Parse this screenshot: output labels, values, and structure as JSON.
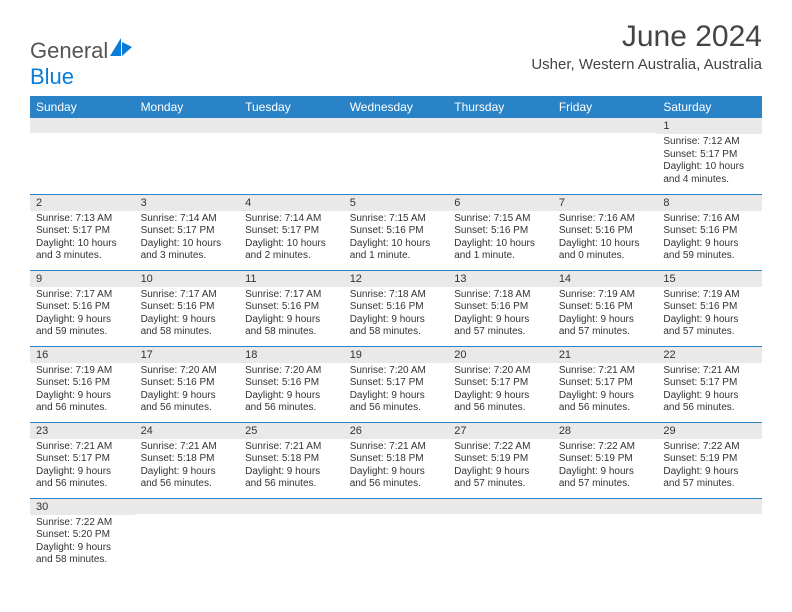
{
  "brand": {
    "word1": "General",
    "word2": "Blue"
  },
  "title": "June 2024",
  "subtitle": "Usher, Western Australia, Australia",
  "colors": {
    "header_bg": "#2a83c7",
    "header_fg": "#ffffff",
    "daynum_bg": "#e9e9e9",
    "row_border": "#2a83c7",
    "brand_blue": "#0a7dd8"
  },
  "weekdays": [
    "Sunday",
    "Monday",
    "Tuesday",
    "Wednesday",
    "Thursday",
    "Friday",
    "Saturday"
  ],
  "weeks": [
    [
      {
        "empty": true
      },
      {
        "empty": true
      },
      {
        "empty": true
      },
      {
        "empty": true
      },
      {
        "empty": true
      },
      {
        "empty": true
      },
      {
        "n": "1",
        "sunrise": "Sunrise: 7:12 AM",
        "sunset": "Sunset: 5:17 PM",
        "daylight": "Daylight: 10 hours and 4 minutes."
      }
    ],
    [
      {
        "n": "2",
        "sunrise": "Sunrise: 7:13 AM",
        "sunset": "Sunset: 5:17 PM",
        "daylight": "Daylight: 10 hours and 3 minutes."
      },
      {
        "n": "3",
        "sunrise": "Sunrise: 7:14 AM",
        "sunset": "Sunset: 5:17 PM",
        "daylight": "Daylight: 10 hours and 3 minutes."
      },
      {
        "n": "4",
        "sunrise": "Sunrise: 7:14 AM",
        "sunset": "Sunset: 5:17 PM",
        "daylight": "Daylight: 10 hours and 2 minutes."
      },
      {
        "n": "5",
        "sunrise": "Sunrise: 7:15 AM",
        "sunset": "Sunset: 5:16 PM",
        "daylight": "Daylight: 10 hours and 1 minute."
      },
      {
        "n": "6",
        "sunrise": "Sunrise: 7:15 AM",
        "sunset": "Sunset: 5:16 PM",
        "daylight": "Daylight: 10 hours and 1 minute."
      },
      {
        "n": "7",
        "sunrise": "Sunrise: 7:16 AM",
        "sunset": "Sunset: 5:16 PM",
        "daylight": "Daylight: 10 hours and 0 minutes."
      },
      {
        "n": "8",
        "sunrise": "Sunrise: 7:16 AM",
        "sunset": "Sunset: 5:16 PM",
        "daylight": "Daylight: 9 hours and 59 minutes."
      }
    ],
    [
      {
        "n": "9",
        "sunrise": "Sunrise: 7:17 AM",
        "sunset": "Sunset: 5:16 PM",
        "daylight": "Daylight: 9 hours and 59 minutes."
      },
      {
        "n": "10",
        "sunrise": "Sunrise: 7:17 AM",
        "sunset": "Sunset: 5:16 PM",
        "daylight": "Daylight: 9 hours and 58 minutes."
      },
      {
        "n": "11",
        "sunrise": "Sunrise: 7:17 AM",
        "sunset": "Sunset: 5:16 PM",
        "daylight": "Daylight: 9 hours and 58 minutes."
      },
      {
        "n": "12",
        "sunrise": "Sunrise: 7:18 AM",
        "sunset": "Sunset: 5:16 PM",
        "daylight": "Daylight: 9 hours and 58 minutes."
      },
      {
        "n": "13",
        "sunrise": "Sunrise: 7:18 AM",
        "sunset": "Sunset: 5:16 PM",
        "daylight": "Daylight: 9 hours and 57 minutes."
      },
      {
        "n": "14",
        "sunrise": "Sunrise: 7:19 AM",
        "sunset": "Sunset: 5:16 PM",
        "daylight": "Daylight: 9 hours and 57 minutes."
      },
      {
        "n": "15",
        "sunrise": "Sunrise: 7:19 AM",
        "sunset": "Sunset: 5:16 PM",
        "daylight": "Daylight: 9 hours and 57 minutes."
      }
    ],
    [
      {
        "n": "16",
        "sunrise": "Sunrise: 7:19 AM",
        "sunset": "Sunset: 5:16 PM",
        "daylight": "Daylight: 9 hours and 56 minutes."
      },
      {
        "n": "17",
        "sunrise": "Sunrise: 7:20 AM",
        "sunset": "Sunset: 5:16 PM",
        "daylight": "Daylight: 9 hours and 56 minutes."
      },
      {
        "n": "18",
        "sunrise": "Sunrise: 7:20 AM",
        "sunset": "Sunset: 5:16 PM",
        "daylight": "Daylight: 9 hours and 56 minutes."
      },
      {
        "n": "19",
        "sunrise": "Sunrise: 7:20 AM",
        "sunset": "Sunset: 5:17 PM",
        "daylight": "Daylight: 9 hours and 56 minutes."
      },
      {
        "n": "20",
        "sunrise": "Sunrise: 7:20 AM",
        "sunset": "Sunset: 5:17 PM",
        "daylight": "Daylight: 9 hours and 56 minutes."
      },
      {
        "n": "21",
        "sunrise": "Sunrise: 7:21 AM",
        "sunset": "Sunset: 5:17 PM",
        "daylight": "Daylight: 9 hours and 56 minutes."
      },
      {
        "n": "22",
        "sunrise": "Sunrise: 7:21 AM",
        "sunset": "Sunset: 5:17 PM",
        "daylight": "Daylight: 9 hours and 56 minutes."
      }
    ],
    [
      {
        "n": "23",
        "sunrise": "Sunrise: 7:21 AM",
        "sunset": "Sunset: 5:17 PM",
        "daylight": "Daylight: 9 hours and 56 minutes."
      },
      {
        "n": "24",
        "sunrise": "Sunrise: 7:21 AM",
        "sunset": "Sunset: 5:18 PM",
        "daylight": "Daylight: 9 hours and 56 minutes."
      },
      {
        "n": "25",
        "sunrise": "Sunrise: 7:21 AM",
        "sunset": "Sunset: 5:18 PM",
        "daylight": "Daylight: 9 hours and 56 minutes."
      },
      {
        "n": "26",
        "sunrise": "Sunrise: 7:21 AM",
        "sunset": "Sunset: 5:18 PM",
        "daylight": "Daylight: 9 hours and 56 minutes."
      },
      {
        "n": "27",
        "sunrise": "Sunrise: 7:22 AM",
        "sunset": "Sunset: 5:19 PM",
        "daylight": "Daylight: 9 hours and 57 minutes."
      },
      {
        "n": "28",
        "sunrise": "Sunrise: 7:22 AM",
        "sunset": "Sunset: 5:19 PM",
        "daylight": "Daylight: 9 hours and 57 minutes."
      },
      {
        "n": "29",
        "sunrise": "Sunrise: 7:22 AM",
        "sunset": "Sunset: 5:19 PM",
        "daylight": "Daylight: 9 hours and 57 minutes."
      }
    ],
    [
      {
        "n": "30",
        "sunrise": "Sunrise: 7:22 AM",
        "sunset": "Sunset: 5:20 PM",
        "daylight": "Daylight: 9 hours and 58 minutes."
      },
      {
        "empty": true
      },
      {
        "empty": true
      },
      {
        "empty": true
      },
      {
        "empty": true
      },
      {
        "empty": true
      },
      {
        "empty": true
      }
    ]
  ]
}
